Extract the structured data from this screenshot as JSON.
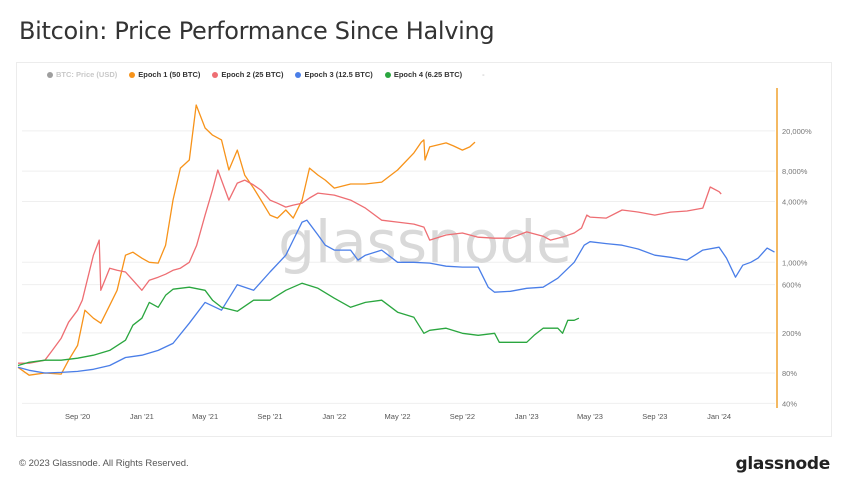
{
  "title": "Bitcoin: Price Performance Since Halving",
  "footer": "© 2023 Glassnode. All Rights Reserved.",
  "brand": "glassnode",
  "watermark": "glassnode",
  "legend": [
    {
      "label": "BTC: Price (USD)",
      "color": "#9e9e9e",
      "muted": true
    },
    {
      "label": "Epoch 1 (50 BTC)",
      "color": "#f7931a"
    },
    {
      "label": "Epoch 2 (25 BTC)",
      "color": "#ee6e73"
    },
    {
      "label": "Epoch 3 (12.5 BTC)",
      "color": "#4a7ee8"
    },
    {
      "label": "Epoch 4 (6.25 BTC)",
      "color": "#2aa63f"
    },
    {
      "label": "-",
      "color": "#cccccc",
      "muted": true,
      "nodot": true
    }
  ],
  "axis_color": "#f0a22e",
  "chart_data": {
    "type": "line",
    "title": "Bitcoin: Price Performance Since Halving",
    "x_scale": "time",
    "y_scale": "log",
    "y_axis_position": "right",
    "xlim": [
      "2020-05-11",
      "2024-04-16"
    ],
    "ylim": [
      36,
      57000
    ],
    "grid": true,
    "legend_position": "top",
    "x_ticks": [
      {
        "date": "2020-09-01",
        "label": "Sep '20"
      },
      {
        "date": "2021-01-01",
        "label": "Jan '21"
      },
      {
        "date": "2021-05-01",
        "label": "May '21"
      },
      {
        "date": "2021-09-01",
        "label": "Sep '21"
      },
      {
        "date": "2022-01-01",
        "label": "Jan '22"
      },
      {
        "date": "2022-05-01",
        "label": "May '22"
      },
      {
        "date": "2022-09-01",
        "label": "Sep '22"
      },
      {
        "date": "2023-01-01",
        "label": "Jan '23"
      },
      {
        "date": "2023-05-01",
        "label": "May '23"
      },
      {
        "date": "2023-09-01",
        "label": "Sep '23"
      },
      {
        "date": "2024-01-01",
        "label": "Jan '24"
      }
    ],
    "y_ticks": [
      {
        "value": 40,
        "label": "40%"
      },
      {
        "value": 80,
        "label": "80%"
      },
      {
        "value": 200,
        "label": "200%"
      },
      {
        "value": 600,
        "label": "600%"
      },
      {
        "value": 1000,
        "label": "1,000%"
      },
      {
        "value": 4000,
        "label": "4,000%"
      },
      {
        "value": 8000,
        "label": "8,000%"
      },
      {
        "value": 20000,
        "label": "20,000%"
      }
    ],
    "series": [
      {
        "name": "Epoch 1 (50 BTC)",
        "color": "#f7931a",
        "points": [
          [
            "2020-05-11",
            91
          ],
          [
            "2020-06-01",
            76
          ],
          [
            "2020-07-01",
            80
          ],
          [
            "2020-08-01",
            78
          ],
          [
            "2020-08-15",
            107
          ],
          [
            "2020-09-01",
            150
          ],
          [
            "2020-09-15",
            335
          ],
          [
            "2020-10-01",
            279
          ],
          [
            "2020-10-15",
            249
          ],
          [
            "2020-11-01",
            375
          ],
          [
            "2020-11-15",
            528
          ],
          [
            "2020-12-01",
            1175
          ],
          [
            "2020-12-15",
            1259
          ],
          [
            "2021-01-01",
            1096
          ],
          [
            "2021-01-15",
            1000
          ],
          [
            "2021-02-01",
            980
          ],
          [
            "2021-02-15",
            1476
          ],
          [
            "2021-03-01",
            4130
          ],
          [
            "2021-03-15",
            8570
          ],
          [
            "2021-04-01",
            10300
          ],
          [
            "2021-04-14",
            36100
          ],
          [
            "2021-05-01",
            21400
          ],
          [
            "2021-05-15",
            18200
          ],
          [
            "2021-06-01",
            16300
          ],
          [
            "2021-06-15",
            8200
          ],
          [
            "2021-07-01",
            12900
          ],
          [
            "2021-07-15",
            7300
          ],
          [
            "2021-08-01",
            5430
          ],
          [
            "2021-08-15",
            4130
          ],
          [
            "2021-09-01",
            2930
          ],
          [
            "2021-09-15",
            2740
          ],
          [
            "2021-10-01",
            3290
          ],
          [
            "2021-10-15",
            2740
          ],
          [
            "2021-11-01",
            4130
          ],
          [
            "2021-11-15",
            8570
          ],
          [
            "2021-12-01",
            7300
          ],
          [
            "2021-12-15",
            6520
          ],
          [
            "2022-01-01",
            5430
          ],
          [
            "2022-02-01",
            5960
          ],
          [
            "2022-03-01",
            5960
          ],
          [
            "2022-04-01",
            6230
          ],
          [
            "2022-05-01",
            8200
          ],
          [
            "2022-06-01",
            12100
          ],
          [
            "2022-06-15",
            15500
          ],
          [
            "2022-06-20",
            16300
          ],
          [
            "2022-06-22",
            10300
          ],
          [
            "2022-07-01",
            13900
          ],
          [
            "2022-08-01",
            15200
          ],
          [
            "2022-08-15",
            14200
          ],
          [
            "2022-09-01",
            12900
          ],
          [
            "2022-09-15",
            13900
          ],
          [
            "2022-09-25",
            15500
          ]
        ]
      },
      {
        "name": "Epoch 2 (25 BTC)",
        "color": "#ee6e73",
        "points": [
          [
            "2020-05-11",
            100
          ],
          [
            "2020-06-01",
            100
          ],
          [
            "2020-07-01",
            107
          ],
          [
            "2020-07-15",
            134
          ],
          [
            "2020-08-01",
            177
          ],
          [
            "2020-08-15",
            255
          ],
          [
            "2020-09-01",
            335
          ],
          [
            "2020-09-10",
            421
          ],
          [
            "2020-10-01",
            1175
          ],
          [
            "2020-10-12",
            1656
          ],
          [
            "2020-10-15",
            528
          ],
          [
            "2020-11-01",
            873
          ],
          [
            "2020-11-15",
            832
          ],
          [
            "2020-12-01",
            800
          ],
          [
            "2020-12-15",
            664
          ],
          [
            "2021-01-01",
            528
          ],
          [
            "2021-01-15",
            664
          ],
          [
            "2021-02-01",
            711
          ],
          [
            "2021-02-15",
            761
          ],
          [
            "2021-03-01",
            832
          ],
          [
            "2021-03-15",
            873
          ],
          [
            "2021-04-01",
            1000
          ],
          [
            "2021-04-15",
            1476
          ],
          [
            "2021-05-01",
            2930
          ],
          [
            "2021-05-15",
            5190
          ],
          [
            "2021-05-25",
            8200
          ],
          [
            "2021-06-01",
            6520
          ],
          [
            "2021-06-15",
            4130
          ],
          [
            "2021-07-01",
            6080
          ],
          [
            "2021-07-15",
            6520
          ],
          [
            "2021-08-01",
            5820
          ],
          [
            "2021-08-15",
            5190
          ],
          [
            "2021-09-01",
            4130
          ],
          [
            "2021-09-15",
            3850
          ],
          [
            "2021-10-01",
            3520
          ],
          [
            "2021-10-15",
            3680
          ],
          [
            "2021-11-01",
            3850
          ],
          [
            "2021-11-15",
            4330
          ],
          [
            "2021-12-01",
            4840
          ],
          [
            "2022-01-01",
            4630
          ],
          [
            "2022-02-01",
            4130
          ],
          [
            "2022-03-01",
            3440
          ],
          [
            "2022-04-01",
            2610
          ],
          [
            "2022-05-01",
            2500
          ],
          [
            "2022-06-01",
            2390
          ],
          [
            "2022-06-20",
            2230
          ],
          [
            "2022-07-01",
            1656
          ],
          [
            "2022-08-01",
            1860
          ],
          [
            "2022-09-01",
            1950
          ],
          [
            "2022-10-01",
            1770
          ],
          [
            "2022-11-01",
            1730
          ],
          [
            "2022-12-01",
            1730
          ],
          [
            "2023-01-01",
            2000
          ],
          [
            "2023-02-01",
            1810
          ],
          [
            "2023-02-15",
            1656
          ],
          [
            "2023-03-01",
            1730
          ],
          [
            "2023-03-15",
            1810
          ],
          [
            "2023-04-01",
            1950
          ],
          [
            "2023-04-15",
            2180
          ],
          [
            "2023-04-25",
            2930
          ],
          [
            "2023-05-01",
            2800
          ],
          [
            "2023-06-01",
            2740
          ],
          [
            "2023-07-01",
            3290
          ],
          [
            "2023-08-01",
            3140
          ],
          [
            "2023-09-01",
            2930
          ],
          [
            "2023-10-01",
            3140
          ],
          [
            "2023-11-01",
            3220
          ],
          [
            "2023-12-01",
            3440
          ],
          [
            "2023-12-15",
            5560
          ],
          [
            "2024-01-01",
            5000
          ],
          [
            "2024-01-05",
            4740
          ]
        ]
      },
      {
        "name": "Epoch 3 (12.5 BTC)",
        "color": "#4a7ee8",
        "points": [
          [
            "2020-05-11",
            91
          ],
          [
            "2020-06-01",
            85
          ],
          [
            "2020-07-01",
            80
          ],
          [
            "2020-08-01",
            81
          ],
          [
            "2020-09-01",
            83
          ],
          [
            "2020-10-01",
            87
          ],
          [
            "2020-11-01",
            95
          ],
          [
            "2020-12-01",
            114
          ],
          [
            "2021-01-01",
            120
          ],
          [
            "2021-02-01",
            134
          ],
          [
            "2021-03-01",
            157
          ],
          [
            "2021-04-01",
            249
          ],
          [
            "2021-05-01",
            400
          ],
          [
            "2021-06-01",
            335
          ],
          [
            "2021-07-01",
            600
          ],
          [
            "2021-08-01",
            528
          ],
          [
            "2021-09-01",
            800
          ],
          [
            "2021-10-01",
            1175
          ],
          [
            "2021-10-15",
            1656
          ],
          [
            "2021-11-01",
            2500
          ],
          [
            "2021-11-10",
            2610
          ],
          [
            "2021-12-01",
            1860
          ],
          [
            "2021-12-15",
            1476
          ],
          [
            "2022-01-01",
            1320
          ],
          [
            "2022-02-01",
            1320
          ],
          [
            "2022-02-15",
            1050
          ],
          [
            "2022-03-01",
            1175
          ],
          [
            "2022-04-01",
            1320
          ],
          [
            "2022-05-01",
            1000
          ],
          [
            "2022-06-01",
            1000
          ],
          [
            "2022-07-01",
            980
          ],
          [
            "2022-08-01",
            915
          ],
          [
            "2022-09-01",
            895
          ],
          [
            "2022-10-01",
            895
          ],
          [
            "2022-10-20",
            566
          ],
          [
            "2022-11-01",
            505
          ],
          [
            "2022-12-01",
            516
          ],
          [
            "2023-01-01",
            552
          ],
          [
            "2023-02-01",
            566
          ],
          [
            "2023-03-01",
            695
          ],
          [
            "2023-04-01",
            1000
          ],
          [
            "2023-04-20",
            1476
          ],
          [
            "2023-05-01",
            1600
          ],
          [
            "2023-06-01",
            1530
          ],
          [
            "2023-07-01",
            1476
          ],
          [
            "2023-08-01",
            1350
          ],
          [
            "2023-09-01",
            1175
          ],
          [
            "2023-10-01",
            1120
          ],
          [
            "2023-11-01",
            1050
          ],
          [
            "2023-12-01",
            1320
          ],
          [
            "2024-01-01",
            1410
          ],
          [
            "2024-01-15",
            1100
          ],
          [
            "2024-02-01",
            711
          ],
          [
            "2024-02-15",
            935
          ],
          [
            "2024-03-01",
            1000
          ],
          [
            "2024-03-15",
            1100
          ],
          [
            "2024-04-01",
            1380
          ],
          [
            "2024-04-15",
            1260
          ]
        ]
      },
      {
        "name": "Epoch 4 (6.25 BTC)",
        "color": "#2aa63f",
        "points": [
          [
            "2020-05-11",
            95
          ],
          [
            "2020-06-01",
            102
          ],
          [
            "2020-07-01",
            107
          ],
          [
            "2020-08-01",
            107
          ],
          [
            "2020-09-01",
            112
          ],
          [
            "2020-10-01",
            120
          ],
          [
            "2020-11-01",
            134
          ],
          [
            "2020-12-01",
            169
          ],
          [
            "2020-12-15",
            238
          ],
          [
            "2021-01-01",
            279
          ],
          [
            "2021-01-15",
            400
          ],
          [
            "2021-02-01",
            358
          ],
          [
            "2021-02-15",
            471
          ],
          [
            "2021-03-01",
            541
          ],
          [
            "2021-04-01",
            566
          ],
          [
            "2021-05-01",
            528
          ],
          [
            "2021-05-15",
            421
          ],
          [
            "2021-06-01",
            358
          ],
          [
            "2021-07-01",
            327
          ],
          [
            "2021-08-01",
            421
          ],
          [
            "2021-09-01",
            421
          ],
          [
            "2021-10-01",
            528
          ],
          [
            "2021-11-01",
            620
          ],
          [
            "2021-12-01",
            552
          ],
          [
            "2022-01-01",
            441
          ],
          [
            "2022-02-01",
            358
          ],
          [
            "2022-03-01",
            400
          ],
          [
            "2022-04-01",
            421
          ],
          [
            "2022-05-01",
            320
          ],
          [
            "2022-06-01",
            285
          ],
          [
            "2022-06-20",
            198
          ],
          [
            "2022-07-01",
            212
          ],
          [
            "2022-08-01",
            222
          ],
          [
            "2022-09-01",
            198
          ],
          [
            "2022-10-01",
            189
          ],
          [
            "2022-11-01",
            198
          ],
          [
            "2022-11-10",
            161
          ],
          [
            "2022-12-01",
            161
          ],
          [
            "2023-01-01",
            161
          ],
          [
            "2023-01-15",
            189
          ],
          [
            "2023-02-01",
            222
          ],
          [
            "2023-03-01",
            222
          ],
          [
            "2023-03-10",
            198
          ],
          [
            "2023-03-20",
            266
          ],
          [
            "2023-04-01",
            266
          ],
          [
            "2023-04-10",
            279
          ]
        ]
      }
    ]
  }
}
